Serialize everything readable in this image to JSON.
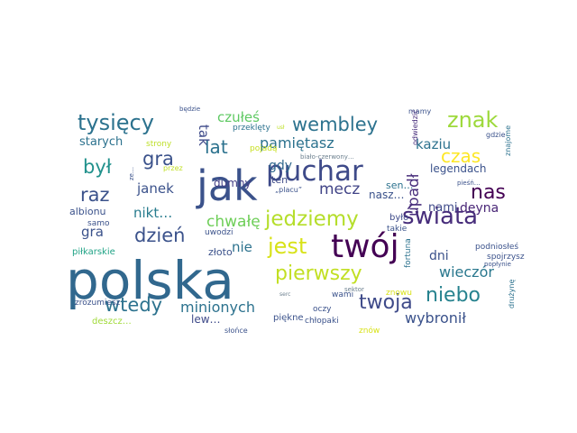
{
  "word_cloud": {
    "words": [
      {
        "text": "polska",
        "color": "#31688e"
      },
      {
        "text": "jak",
        "color": "#3b528b"
      },
      {
        "text": "twój",
        "color": "#440154"
      },
      {
        "text": "puchar",
        "color": "#3e4a89"
      },
      {
        "text": "jedziemy",
        "color": "#b5de2b"
      },
      {
        "text": "pierwszy",
        "color": "#c2df23"
      },
      {
        "text": "tysięcy",
        "color": "#2c728e"
      },
      {
        "text": "wembley",
        "color": "#2c728e"
      },
      {
        "text": "znak",
        "color": "#9dd93b"
      },
      {
        "text": "świata",
        "color": "#472d7b"
      },
      {
        "text": "jest",
        "color": "#d8e219"
      },
      {
        "text": "niebo",
        "color": "#26828e"
      },
      {
        "text": "twoja",
        "color": "#3e4a89"
      },
      {
        "text": "wtedy",
        "color": "#2c728e"
      },
      {
        "text": "dzień",
        "color": "#3b528b"
      },
      {
        "text": "nas",
        "color": "#440154"
      },
      {
        "text": "czas",
        "color": "#fde725"
      },
      {
        "text": "był",
        "color": "#21918c"
      },
      {
        "text": "gra",
        "color": "#3b528b"
      },
      {
        "text": "raz",
        "color": "#3b528b"
      },
      {
        "text": "lat",
        "color": "#2c728e"
      },
      {
        "text": "tak",
        "color": "#3e4a89"
      },
      {
        "text": "mecz",
        "color": "#414487"
      },
      {
        "text": "wieczór",
        "color": "#2a788e"
      },
      {
        "text": "minionych",
        "color": "#2c728e"
      },
      {
        "text": "wybronił",
        "color": "#3b528b"
      },
      {
        "text": "chwałę",
        "color": "#6ece58"
      },
      {
        "text": "upadł",
        "color": "#472d7b"
      },
      {
        "text": "czułeś",
        "color": "#5ec962"
      },
      {
        "text": "pamiętasz",
        "color": "#2c728e"
      },
      {
        "text": "kaziu",
        "color": "#2c728e"
      },
      {
        "text": "janek",
        "color": "#3b528b"
      },
      {
        "text": "nikt…",
        "color": "#287c8e"
      },
      {
        "text": "gdy",
        "color": "#31688e"
      },
      {
        "text": "gra",
        "color": "#3b528b"
      },
      {
        "text": "nie",
        "color": "#2c728e"
      },
      {
        "text": "nami",
        "color": "#3e4a89"
      },
      {
        "text": "deyna",
        "color": "#482576"
      },
      {
        "text": "dni",
        "color": "#3b528b"
      },
      {
        "text": "starych",
        "color": "#2c728e"
      },
      {
        "text": "legendach",
        "color": "#3b528b"
      },
      {
        "text": "albionu",
        "color": "#3b528b"
      },
      {
        "text": "dumny",
        "color": "#433e85"
      },
      {
        "text": "złoto",
        "color": "#3b528b"
      },
      {
        "text": "lew…",
        "color": "#3e4a89"
      },
      {
        "text": "było",
        "color": "#3e4a89"
      },
      {
        "text": "sen…",
        "color": "#2c728e"
      },
      {
        "text": "nasz…",
        "color": "#3b528b"
      },
      {
        "text": "ten",
        "color": "#3e4a89"
      },
      {
        "text": "podniosłeś",
        "color": "#3b528b"
      },
      {
        "text": "piłkarskie",
        "color": "#20a386"
      },
      {
        "text": "deszcz…",
        "color": "#a0da39"
      },
      {
        "text": "piękne",
        "color": "#3b528b"
      },
      {
        "text": "chłopaki",
        "color": "#3b528b"
      },
      {
        "text": "strony",
        "color": "#bddf26"
      },
      {
        "text": "pojadą",
        "color": "#c8e020"
      },
      {
        "text": "przeklęty",
        "color": "#2c728e"
      },
      {
        "text": "uwodzi",
        "color": "#3b528b"
      },
      {
        "text": "samo",
        "color": "#3b528b"
      },
      {
        "text": "przez",
        "color": "#c0df25"
      },
      {
        "text": "zrozumiesz",
        "color": "#3b528b"
      },
      {
        "text": "spojrzysz",
        "color": "#3b528b"
      },
      {
        "text": "takie",
        "color": "#3b528b"
      },
      {
        "text": "oczy",
        "color": "#3b528b"
      },
      {
        "text": "wami",
        "color": "#3b528b"
      },
      {
        "text": "znowu",
        "color": "#d8e219"
      },
      {
        "text": "znów",
        "color": "#d8e219"
      },
      {
        "text": "mamy",
        "color": "#3b528b"
      },
      {
        "text": "„placu”",
        "color": "#3b528b"
      },
      {
        "text": "popłynie",
        "color": "#3b528b"
      },
      {
        "text": "sektor",
        "color": "#6b7f8e"
      },
      {
        "text": "słońce",
        "color": "#3b528b"
      },
      {
        "text": "gdzie",
        "color": "#3b528b"
      },
      {
        "text": "fortuna",
        "color": "#2c728e"
      },
      {
        "text": "drużynę",
        "color": "#2c728e"
      },
      {
        "text": "znajome",
        "color": "#2c728e"
      },
      {
        "text": "odwiedzić",
        "color": "#472d7b"
      },
      {
        "text": "będzie",
        "color": "#3b528b"
      },
      {
        "text": "biało-czerwony…",
        "color": "#6b7f8e"
      },
      {
        "text": "pieśń…",
        "color": "#3b528b"
      },
      {
        "text": "ze…",
        "color": "#3b528b"
      },
      {
        "text": "usł",
        "color": "#bddf26"
      },
      {
        "text": "serc",
        "color": "#6b7f8e"
      }
    ]
  }
}
